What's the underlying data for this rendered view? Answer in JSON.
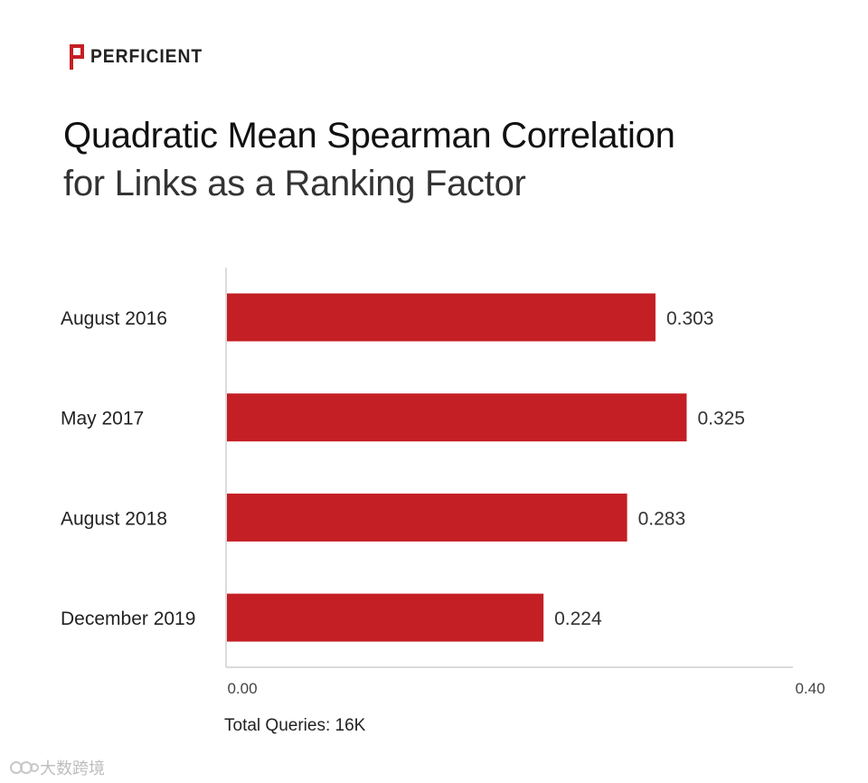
{
  "brand": {
    "logo_text": "PERFICIENT",
    "accent_color": "#c41f24"
  },
  "footnote": "Total Queries: 16K",
  "watermark": "大数跨境",
  "chart_data": {
    "type": "bar",
    "orientation": "horizontal",
    "title": "Quadratic Mean Spearman Correlation",
    "subtitle": "for Links as a Ranking Factor",
    "categories": [
      "August 2016",
      "May 2017",
      "August 2018",
      "December 2019"
    ],
    "values": [
      0.303,
      0.325,
      0.283,
      0.224
    ],
    "value_labels": [
      "0.303",
      "0.325",
      "0.283",
      "0.224"
    ],
    "xlim": [
      0,
      0.4
    ],
    "x_tick_labels": [
      "0.00",
      "0.40"
    ],
    "bar_color": "#c41f24",
    "grid": false,
    "legend": "none"
  }
}
